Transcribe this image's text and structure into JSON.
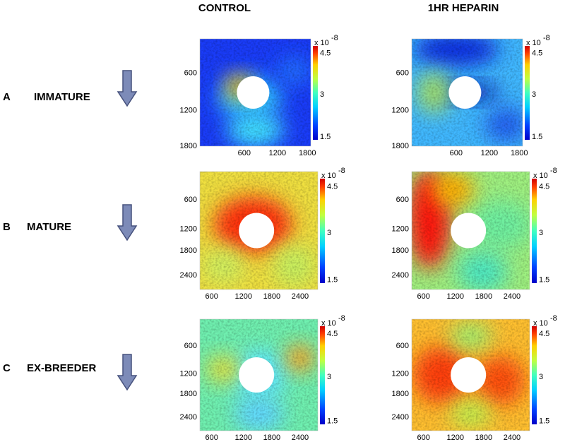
{
  "columns": [
    "CONTROL",
    "1HR HEPARIN"
  ],
  "rows": [
    {
      "letter": "A",
      "label": "IMMATURE",
      "panels": [
        {
          "xticks": [
            600,
            1200,
            1800
          ],
          "yticks": [
            600,
            1200,
            1800
          ],
          "colorbar": {
            "base": "x 10",
            "exponent": "-8",
            "ticks": [
              4.5,
              3,
              1.5
            ]
          }
        },
        {
          "xticks": [
            600,
            1200,
            1800
          ],
          "yticks": [
            600,
            1200,
            1800
          ],
          "colorbar": {
            "base": "x 10",
            "exponent": "-8",
            "ticks": [
              4.5,
              3,
              1.5
            ]
          }
        }
      ]
    },
    {
      "letter": "B",
      "label": "MATURE",
      "panels": [
        {
          "xticks": [
            600,
            1200,
            1800,
            2400
          ],
          "yticks": [
            600,
            1200,
            1800,
            2400
          ],
          "colorbar": {
            "base": "x 10",
            "exponent": "-8",
            "ticks": [
              4.5,
              3,
              1.5
            ]
          }
        },
        {
          "xticks": [
            600,
            1200,
            1800,
            2400
          ],
          "yticks": [
            600,
            1200,
            1800,
            2400
          ],
          "colorbar": {
            "base": "x 10",
            "exponent": "-8",
            "ticks": [
              4.5,
              3,
              1.5
            ]
          }
        }
      ]
    },
    {
      "letter": "C",
      "label": "EX-BREEDER",
      "panels": [
        {
          "xticks": [
            600,
            1200,
            1800,
            2400
          ],
          "yticks": [
            600,
            1200,
            1800,
            2400
          ],
          "colorbar": {
            "base": "x 10",
            "exponent": "-8",
            "ticks": [
              4.5,
              3,
              1.5
            ]
          }
        },
        {
          "xticks": [
            600,
            1200,
            1800,
            2400
          ],
          "yticks": [
            600,
            1200,
            1800,
            2400
          ],
          "colorbar": {
            "base": "x 10",
            "exponent": "-8",
            "ticks": [
              4.5,
              3,
              1.5
            ]
          }
        }
      ]
    }
  ]
}
